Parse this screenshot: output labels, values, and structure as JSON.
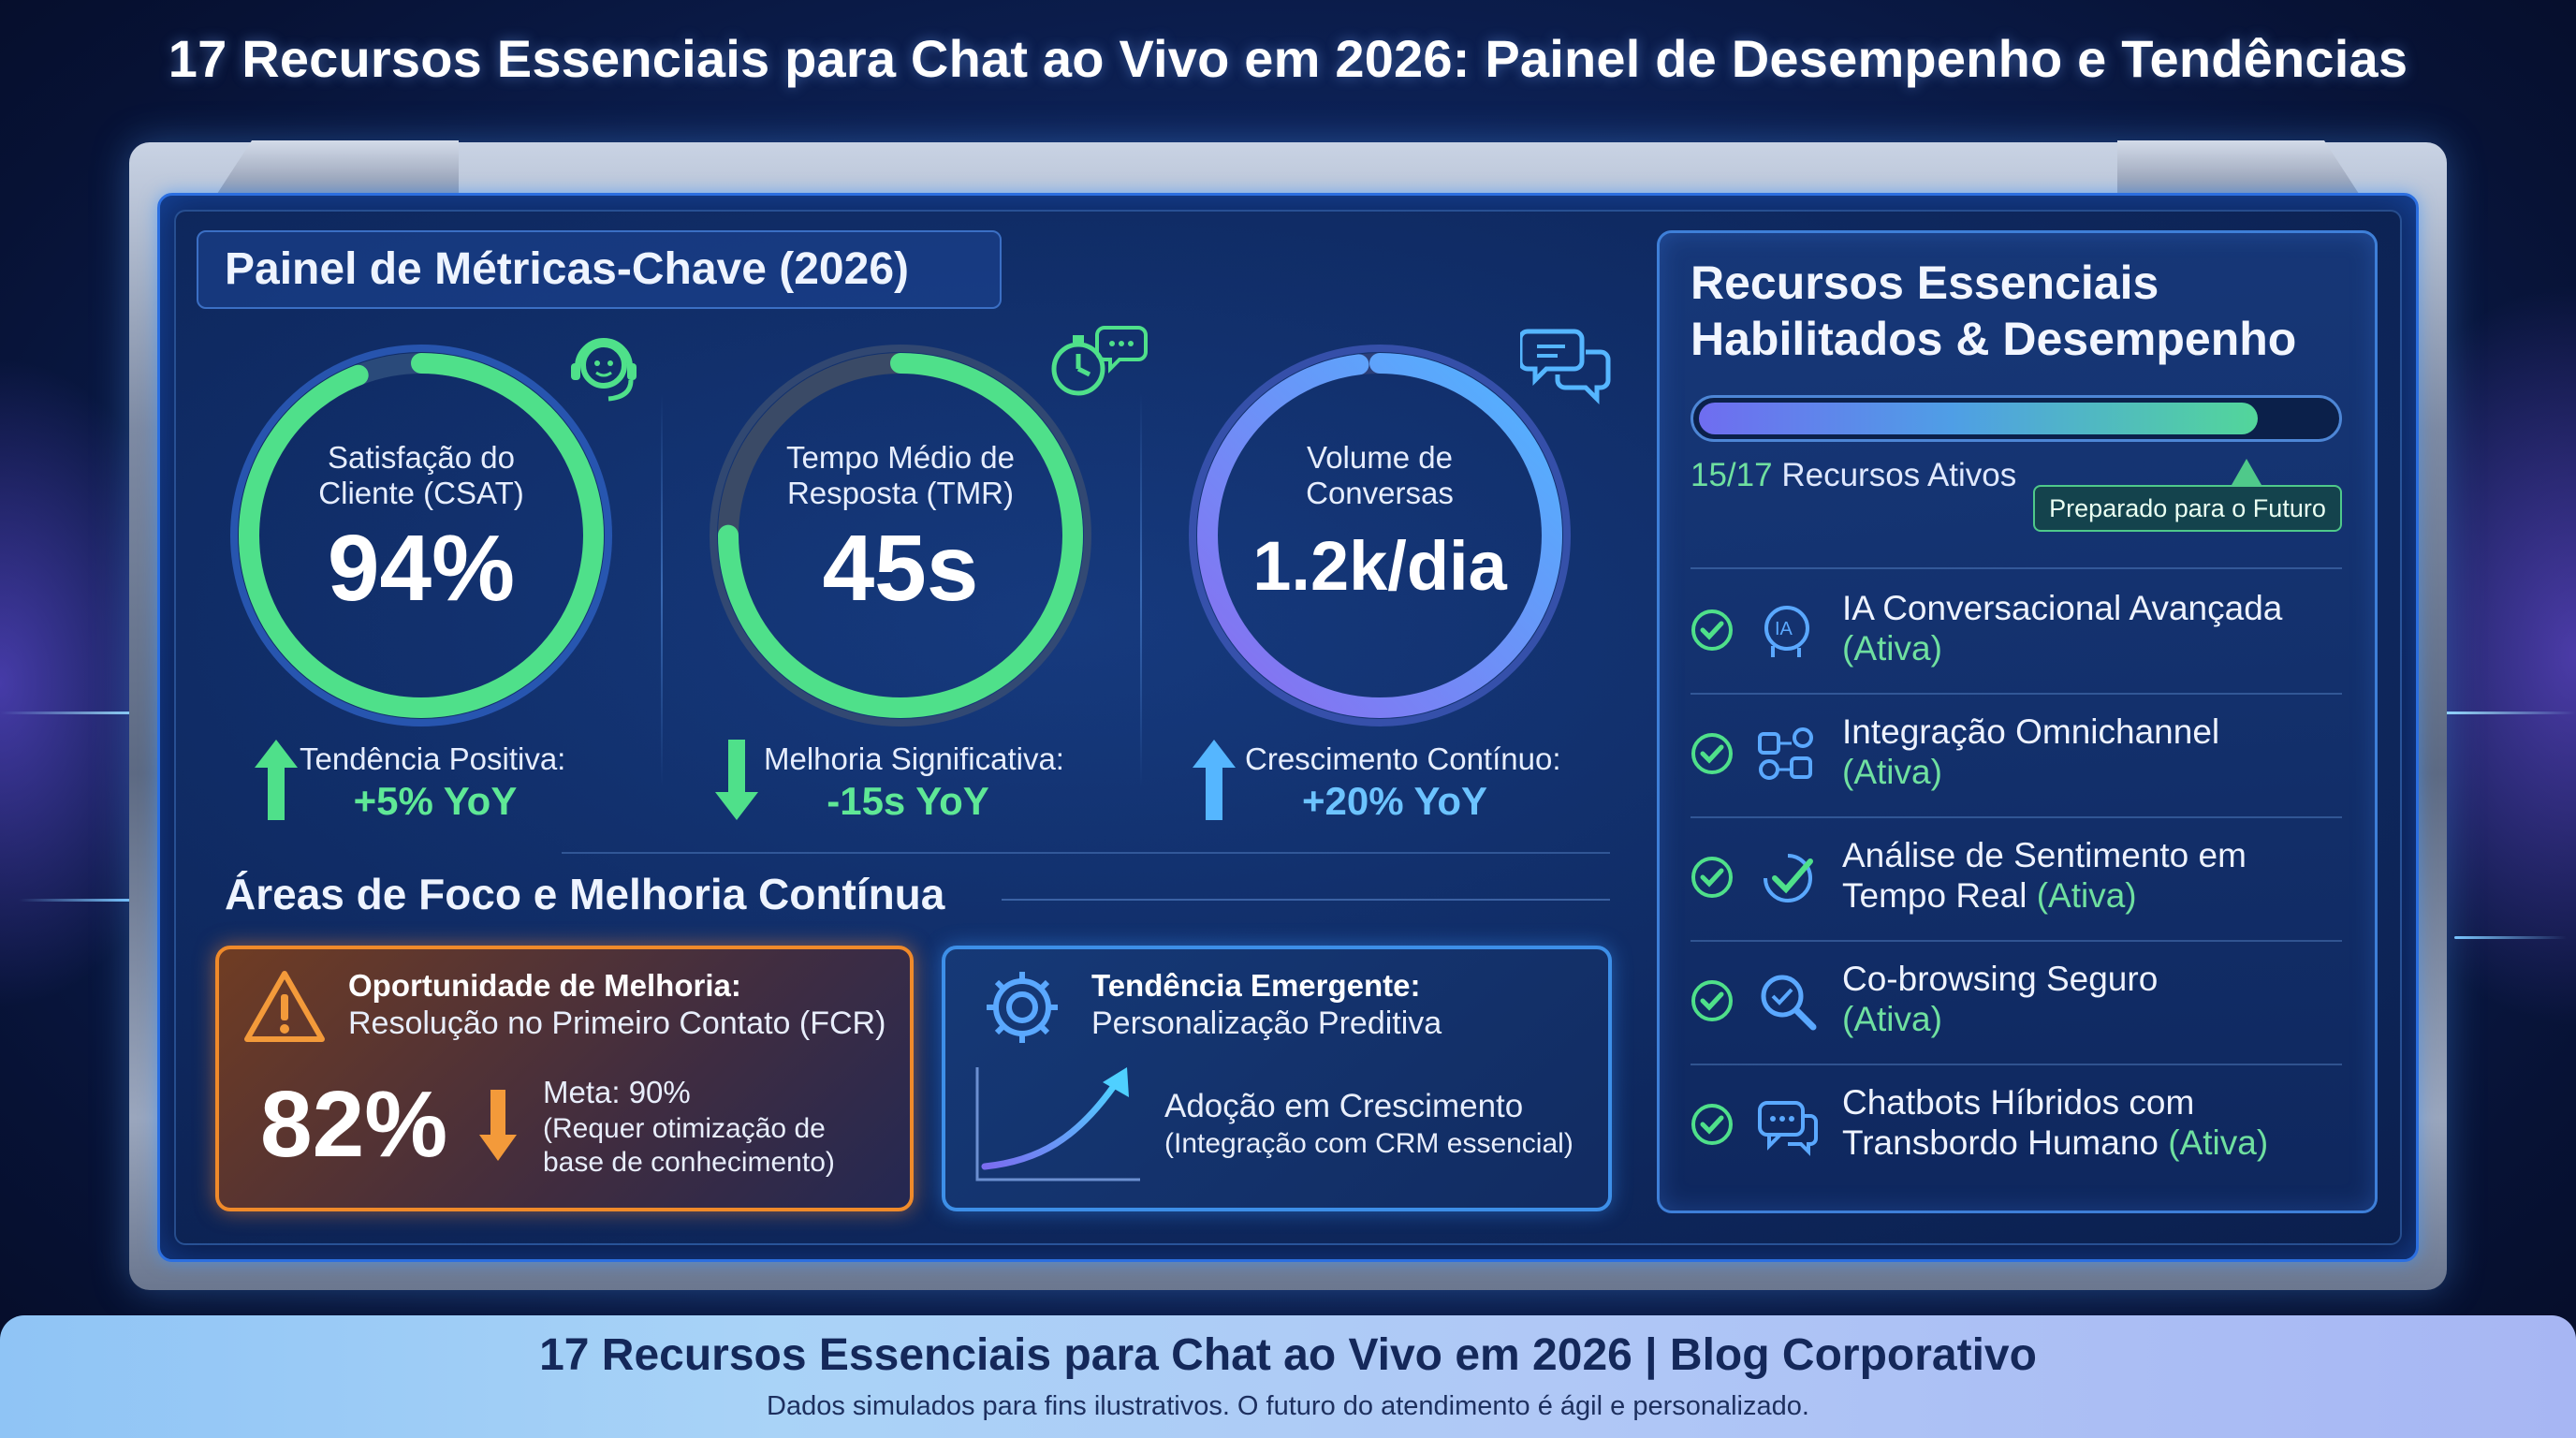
{
  "title": "17 Recursos Essenciais para Chat ao Vivo em 2026: Painel de Desempenho e Tendências",
  "left_panel": {
    "heading": "Painel de Métricas-Chave (2026)",
    "gauges": [
      {
        "label_line1": "Satisfação do",
        "label_line2": "Cliente (CSAT)",
        "value": "94%",
        "fill": 0.94,
        "trend_direction": "up",
        "trend_label": "Tendência Positiva:",
        "trend_value": "+5% YoY",
        "icon": "headset-face-icon",
        "color": "#4fe08a"
      },
      {
        "label_line1": "Tempo Médio de",
        "label_line2": "Resposta (TMR)",
        "value": "45s",
        "fill": 0.75,
        "trend_direction": "down",
        "trend_label": "Melhoria Significativa:",
        "trend_value": "-15s YoY",
        "icon": "stopwatch-chat-icon",
        "color": "#4fe08a"
      },
      {
        "label_line1": "Volume de",
        "label_line2": "Conversas",
        "value": "1.2k/dia",
        "fill": 0.98,
        "trend_direction": "up",
        "trend_label": "Crescimento Contínuo:",
        "trend_value": "+20% YoY",
        "icon": "chat-bubbles-icon",
        "color": "#55a8ff"
      }
    ],
    "focus_section_title": "Áreas de Foco e Melhoria Contínua",
    "opportunity": {
      "title": "Oportunidade de Melhoria:",
      "subtitle": "Resolução no Primeiro Contato (FCR)",
      "value": "82%",
      "goal": "Meta: 90%",
      "note_line1": "(Requer otimização de",
      "note_line2": "base de conhecimento)",
      "icon": "warning-triangle-icon"
    },
    "trend_card": {
      "title": "Tendência Emergente:",
      "subtitle": "Personalização Preditiva",
      "line1": "Adoção em Crescimento",
      "line2": "(Integração com CRM essencial)",
      "icon": "gear-icon"
    }
  },
  "right_panel": {
    "title_line1": "Recursos Essenciais",
    "title_line2": "Habilitados & Desempenho",
    "active_count": "15/17",
    "active_label": "Recursos Ativos",
    "progress": 0.88,
    "badge": "Preparado para o Futuro",
    "features": [
      {
        "line1": "IA Conversacional Avançada",
        "line2": "",
        "status": "(Ativa)",
        "icon": "ai-head-icon"
      },
      {
        "line1": "Integração Omnichannel",
        "line2": "",
        "status": "(Ativa)",
        "icon": "omnichannel-icon"
      },
      {
        "line1": "Análise de Sentimento em",
        "line2": "Tempo Real",
        "status": "(Ativa)",
        "icon": "sentiment-check-icon"
      },
      {
        "line1": "Co-browsing Seguro",
        "line2": "",
        "status": "(Ativa)",
        "icon": "magnifier-icon"
      },
      {
        "line1": "Chatbots Híbridos com",
        "line2": "Transbordo Humano",
        "status": "(Ativa)",
        "icon": "chatbot-icon"
      }
    ]
  },
  "footer": {
    "title": "17 Recursos Essenciais para Chat ao Vivo em 2026 | Blog Corporativo",
    "subtitle": "Dados simulados para fins ilustrativos. O futuro do atendimento é ágil e personalizado."
  },
  "colors": {
    "accent_green": "#4fe08a",
    "accent_blue": "#55a8ff",
    "accent_orange": "#f08a2a",
    "background": "#0d2257"
  }
}
